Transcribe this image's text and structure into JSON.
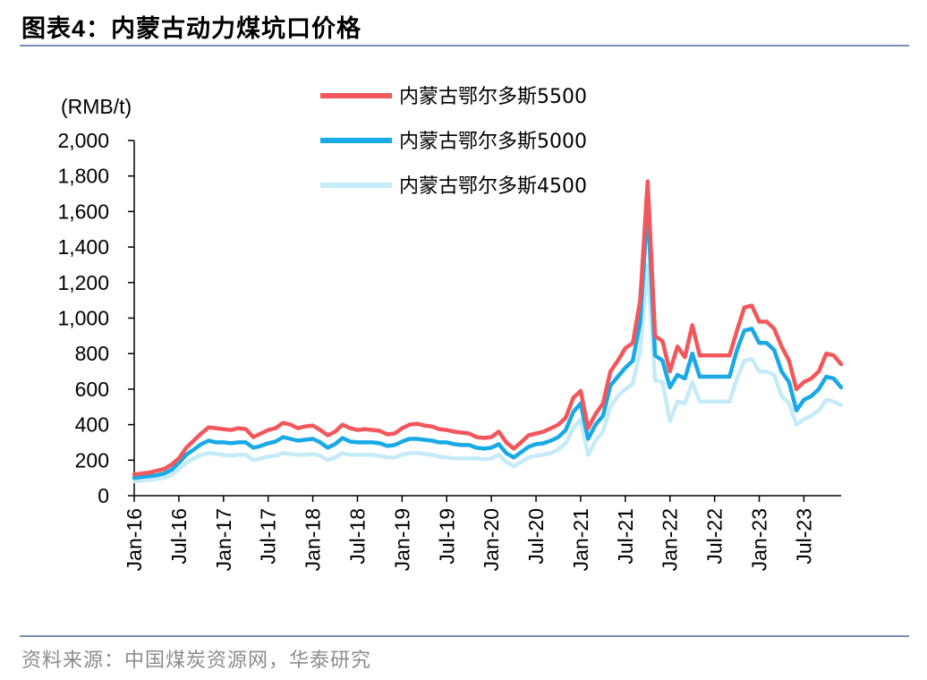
{
  "header": {
    "title_prefix": "图表",
    "title_number": "4：",
    "title_text": "内蒙古动力煤坑口价格"
  },
  "footer": {
    "source": "资料来源：中国煤炭资源网，华泰研究"
  },
  "colors": {
    "rule": "#7a8fb4",
    "series_5500": "#f2575b",
    "series_5000": "#19a9e6",
    "series_4500": "#c5eaf8",
    "source_text": "#8c8c8c"
  },
  "chart_data": {
    "type": "line",
    "ylabel": "(RMB/t)",
    "ylim": [
      0,
      2000
    ],
    "yticks": [
      "0",
      "200",
      "400",
      "600",
      "800",
      "1,000",
      "1,200",
      "1,400",
      "1,600",
      "1,800",
      "2,000"
    ],
    "ytick_values": [
      0,
      200,
      400,
      600,
      800,
      1000,
      1200,
      1400,
      1600,
      1800,
      2000
    ],
    "xticks": [
      "Jan-16",
      "Jul-16",
      "Jan-17",
      "Jul-17",
      "Jan-18",
      "Jul-18",
      "Jan-19",
      "Jul-19",
      "Jan-20",
      "Jul-20",
      "Jan-21",
      "Jul-21",
      "Jan-22",
      "Jul-22",
      "Jan-23",
      "Jul-23"
    ],
    "xrange_months": [
      0,
      95
    ],
    "legend_position": "top-center",
    "grid": false,
    "series": [
      {
        "name": "内蒙古鄂尔多斯5500",
        "color": "#f2575b",
        "points": [
          [
            "2016-01",
            120
          ],
          [
            "2016-02",
            125
          ],
          [
            "2016-03",
            130
          ],
          [
            "2016-04",
            140
          ],
          [
            "2016-05",
            150
          ],
          [
            "2016-06",
            175
          ],
          [
            "2016-07",
            210
          ],
          [
            "2016-08",
            270
          ],
          [
            "2016-09",
            310
          ],
          [
            "2016-10",
            350
          ],
          [
            "2016-11",
            385
          ],
          [
            "2016-12",
            380
          ],
          [
            "2017-01",
            375
          ],
          [
            "2017-02",
            370
          ],
          [
            "2017-03",
            380
          ],
          [
            "2017-04",
            375
          ],
          [
            "2017-05",
            330
          ],
          [
            "2017-06",
            350
          ],
          [
            "2017-07",
            370
          ],
          [
            "2017-08",
            380
          ],
          [
            "2017-09",
            410
          ],
          [
            "2017-10",
            400
          ],
          [
            "2017-11",
            380
          ],
          [
            "2017-12",
            390
          ],
          [
            "2018-01",
            395
          ],
          [
            "2018-02",
            370
          ],
          [
            "2018-03",
            340
          ],
          [
            "2018-04",
            360
          ],
          [
            "2018-05",
            400
          ],
          [
            "2018-06",
            380
          ],
          [
            "2018-07",
            370
          ],
          [
            "2018-08",
            375
          ],
          [
            "2018-09",
            370
          ],
          [
            "2018-10",
            365
          ],
          [
            "2018-11",
            345
          ],
          [
            "2018-12",
            350
          ],
          [
            "2019-01",
            380
          ],
          [
            "2019-02",
            400
          ],
          [
            "2019-03",
            405
          ],
          [
            "2019-04",
            395
          ],
          [
            "2019-05",
            390
          ],
          [
            "2019-06",
            375
          ],
          [
            "2019-07",
            370
          ],
          [
            "2019-08",
            360
          ],
          [
            "2019-09",
            355
          ],
          [
            "2019-10",
            350
          ],
          [
            "2019-11",
            330
          ],
          [
            "2019-12",
            325
          ],
          [
            "2020-01",
            330
          ],
          [
            "2020-02",
            360
          ],
          [
            "2020-03",
            300
          ],
          [
            "2020-04",
            265
          ],
          [
            "2020-05",
            300
          ],
          [
            "2020-06",
            340
          ],
          [
            "2020-07",
            350
          ],
          [
            "2020-08",
            360
          ],
          [
            "2020-09",
            380
          ],
          [
            "2020-10",
            400
          ],
          [
            "2020-11",
            440
          ],
          [
            "2020-12",
            550
          ],
          [
            "2021-01",
            590
          ],
          [
            "2021-02",
            380
          ],
          [
            "2021-03",
            460
          ],
          [
            "2021-04",
            520
          ],
          [
            "2021-05",
            700
          ],
          [
            "2021-06",
            760
          ],
          [
            "2021-07",
            830
          ],
          [
            "2021-08",
            860
          ],
          [
            "2021-09",
            1100
          ],
          [
            "2021-10",
            1770
          ],
          [
            "2021-11",
            900
          ],
          [
            "2021-12",
            870
          ],
          [
            "2022-01",
            700
          ],
          [
            "2022-02",
            840
          ],
          [
            "2022-03",
            780
          ],
          [
            "2022-04",
            960
          ],
          [
            "2022-05",
            790
          ],
          [
            "2022-06",
            790
          ],
          [
            "2022-07",
            790
          ],
          [
            "2022-08",
            790
          ],
          [
            "2022-09",
            790
          ],
          [
            "2022-10",
            930
          ],
          [
            "2022-11",
            1060
          ],
          [
            "2022-12",
            1070
          ],
          [
            "2023-01",
            980
          ],
          [
            "2023-02",
            980
          ],
          [
            "2023-03",
            940
          ],
          [
            "2023-04",
            840
          ],
          [
            "2023-05",
            760
          ],
          [
            "2023-06",
            600
          ],
          [
            "2023-07",
            640
          ],
          [
            "2023-08",
            660
          ],
          [
            "2023-09",
            700
          ],
          [
            "2023-10",
            800
          ],
          [
            "2023-11",
            790
          ],
          [
            "2023-12",
            740
          ]
        ]
      },
      {
        "name": "内蒙古鄂尔多斯5000",
        "color": "#19a9e6",
        "points": [
          [
            "2016-01",
            100
          ],
          [
            "2016-02",
            105
          ],
          [
            "2016-03",
            110
          ],
          [
            "2016-04",
            115
          ],
          [
            "2016-05",
            125
          ],
          [
            "2016-06",
            145
          ],
          [
            "2016-07",
            185
          ],
          [
            "2016-08",
            230
          ],
          [
            "2016-09",
            260
          ],
          [
            "2016-10",
            290
          ],
          [
            "2016-11",
            310
          ],
          [
            "2016-12",
            300
          ],
          [
            "2017-01",
            300
          ],
          [
            "2017-02",
            295
          ],
          [
            "2017-03",
            300
          ],
          [
            "2017-04",
            300
          ],
          [
            "2017-05",
            270
          ],
          [
            "2017-06",
            280
          ],
          [
            "2017-07",
            295
          ],
          [
            "2017-08",
            305
          ],
          [
            "2017-09",
            330
          ],
          [
            "2017-10",
            320
          ],
          [
            "2017-11",
            310
          ],
          [
            "2017-12",
            315
          ],
          [
            "2018-01",
            320
          ],
          [
            "2018-02",
            300
          ],
          [
            "2018-03",
            270
          ],
          [
            "2018-04",
            290
          ],
          [
            "2018-05",
            325
          ],
          [
            "2018-06",
            305
          ],
          [
            "2018-07",
            300
          ],
          [
            "2018-08",
            300
          ],
          [
            "2018-09",
            300
          ],
          [
            "2018-10",
            295
          ],
          [
            "2018-11",
            280
          ],
          [
            "2018-12",
            285
          ],
          [
            "2019-01",
            305
          ],
          [
            "2019-02",
            320
          ],
          [
            "2019-03",
            320
          ],
          [
            "2019-04",
            315
          ],
          [
            "2019-05",
            310
          ],
          [
            "2019-06",
            300
          ],
          [
            "2019-07",
            300
          ],
          [
            "2019-08",
            290
          ],
          [
            "2019-09",
            285
          ],
          [
            "2019-10",
            285
          ],
          [
            "2019-11",
            270
          ],
          [
            "2019-12",
            265
          ],
          [
            "2020-01",
            270
          ],
          [
            "2020-02",
            290
          ],
          [
            "2020-03",
            240
          ],
          [
            "2020-04",
            215
          ],
          [
            "2020-05",
            245
          ],
          [
            "2020-06",
            275
          ],
          [
            "2020-07",
            290
          ],
          [
            "2020-08",
            295
          ],
          [
            "2020-09",
            310
          ],
          [
            "2020-10",
            330
          ],
          [
            "2020-11",
            370
          ],
          [
            "2020-12",
            470
          ],
          [
            "2021-01",
            520
          ],
          [
            "2021-02",
            320
          ],
          [
            "2021-03",
            400
          ],
          [
            "2021-04",
            450
          ],
          [
            "2021-05",
            620
          ],
          [
            "2021-06",
            670
          ],
          [
            "2021-07",
            720
          ],
          [
            "2021-08",
            760
          ],
          [
            "2021-09",
            980
          ],
          [
            "2021-10",
            1640
          ],
          [
            "2021-11",
            790
          ],
          [
            "2021-12",
            760
          ],
          [
            "2022-01",
            610
          ],
          [
            "2022-02",
            680
          ],
          [
            "2022-03",
            660
          ],
          [
            "2022-04",
            800
          ],
          [
            "2022-05",
            670
          ],
          [
            "2022-06",
            670
          ],
          [
            "2022-07",
            670
          ],
          [
            "2022-08",
            670
          ],
          [
            "2022-09",
            670
          ],
          [
            "2022-10",
            820
          ],
          [
            "2022-11",
            930
          ],
          [
            "2022-12",
            940
          ],
          [
            "2023-01",
            860
          ],
          [
            "2023-02",
            860
          ],
          [
            "2023-03",
            820
          ],
          [
            "2023-04",
            700
          ],
          [
            "2023-05",
            640
          ],
          [
            "2023-06",
            480
          ],
          [
            "2023-07",
            540
          ],
          [
            "2023-08",
            560
          ],
          [
            "2023-09",
            600
          ],
          [
            "2023-10",
            670
          ],
          [
            "2023-11",
            660
          ],
          [
            "2023-12",
            610
          ]
        ]
      },
      {
        "name": "内蒙古鄂尔多斯4500",
        "color": "#c5eaf8",
        "points": [
          [
            "2016-01",
            80
          ],
          [
            "2016-02",
            85
          ],
          [
            "2016-03",
            90
          ],
          [
            "2016-04",
            95
          ],
          [
            "2016-05",
            100
          ],
          [
            "2016-06",
            115
          ],
          [
            "2016-07",
            150
          ],
          [
            "2016-08",
            185
          ],
          [
            "2016-09",
            210
          ],
          [
            "2016-10",
            230
          ],
          [
            "2016-11",
            240
          ],
          [
            "2016-12",
            235
          ],
          [
            "2017-01",
            230
          ],
          [
            "2017-02",
            225
          ],
          [
            "2017-03",
            230
          ],
          [
            "2017-04",
            230
          ],
          [
            "2017-05",
            200
          ],
          [
            "2017-06",
            210
          ],
          [
            "2017-07",
            220
          ],
          [
            "2017-08",
            225
          ],
          [
            "2017-09",
            240
          ],
          [
            "2017-10",
            235
          ],
          [
            "2017-11",
            230
          ],
          [
            "2017-12",
            230
          ],
          [
            "2018-01",
            235
          ],
          [
            "2018-02",
            225
          ],
          [
            "2018-03",
            200
          ],
          [
            "2018-04",
            215
          ],
          [
            "2018-05",
            240
          ],
          [
            "2018-06",
            230
          ],
          [
            "2018-07",
            230
          ],
          [
            "2018-08",
            230
          ],
          [
            "2018-09",
            230
          ],
          [
            "2018-10",
            225
          ],
          [
            "2018-11",
            215
          ],
          [
            "2018-12",
            215
          ],
          [
            "2019-01",
            230
          ],
          [
            "2019-02",
            240
          ],
          [
            "2019-03",
            240
          ],
          [
            "2019-04",
            235
          ],
          [
            "2019-05",
            230
          ],
          [
            "2019-06",
            220
          ],
          [
            "2019-07",
            215
          ],
          [
            "2019-08",
            210
          ],
          [
            "2019-09",
            210
          ],
          [
            "2019-10",
            210
          ],
          [
            "2019-11",
            210
          ],
          [
            "2019-12",
            205
          ],
          [
            "2020-01",
            210
          ],
          [
            "2020-02",
            230
          ],
          [
            "2020-03",
            190
          ],
          [
            "2020-04",
            165
          ],
          [
            "2020-05",
            190
          ],
          [
            "2020-06",
            215
          ],
          [
            "2020-07",
            225
          ],
          [
            "2020-08",
            230
          ],
          [
            "2020-09",
            240
          ],
          [
            "2020-10",
            260
          ],
          [
            "2020-11",
            295
          ],
          [
            "2020-12",
            380
          ],
          [
            "2021-01",
            430
          ],
          [
            "2021-02",
            230
          ],
          [
            "2021-03",
            310
          ],
          [
            "2021-04",
            360
          ],
          [
            "2021-05",
            500
          ],
          [
            "2021-06",
            560
          ],
          [
            "2021-07",
            600
          ],
          [
            "2021-08",
            630
          ],
          [
            "2021-09",
            820
          ],
          [
            "2021-10",
            1300
          ],
          [
            "2021-11",
            650
          ],
          [
            "2021-12",
            640
          ],
          [
            "2022-01",
            420
          ],
          [
            "2022-02",
            530
          ],
          [
            "2022-03",
            520
          ],
          [
            "2022-04",
            640
          ],
          [
            "2022-05",
            530
          ],
          [
            "2022-06",
            530
          ],
          [
            "2022-07",
            530
          ],
          [
            "2022-08",
            530
          ],
          [
            "2022-09",
            530
          ],
          [
            "2022-10",
            660
          ],
          [
            "2022-11",
            760
          ],
          [
            "2022-12",
            770
          ],
          [
            "2023-01",
            700
          ],
          [
            "2023-02",
            700
          ],
          [
            "2023-03",
            680
          ],
          [
            "2023-04",
            560
          ],
          [
            "2023-05",
            520
          ],
          [
            "2023-06",
            400
          ],
          [
            "2023-07",
            430
          ],
          [
            "2023-08",
            450
          ],
          [
            "2023-09",
            480
          ],
          [
            "2023-10",
            540
          ],
          [
            "2023-11",
            530
          ],
          [
            "2023-12",
            510
          ]
        ]
      }
    ]
  }
}
